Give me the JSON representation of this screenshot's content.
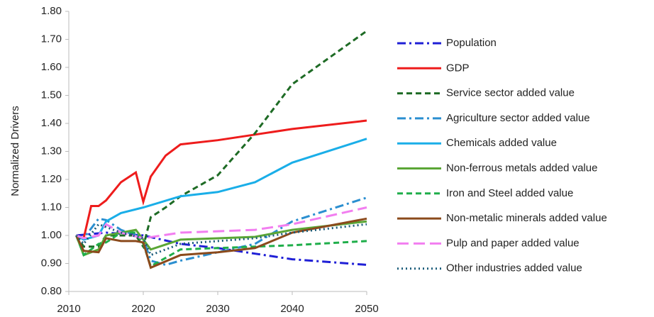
{
  "chart_data": {
    "type": "line",
    "ylabel": "Normalized Drivers",
    "xlim": [
      2010,
      2050
    ],
    "xticks": [
      2010,
      2020,
      2030,
      2040,
      2050
    ],
    "ylim": [
      0.8,
      1.8
    ],
    "yticks": [
      {
        "value": 0.8,
        "label": "0.80"
      },
      {
        "value": 0.9,
        "label": "0.90"
      },
      {
        "value": 1.0,
        "label": "1.00"
      },
      {
        "value": 1.1,
        "label": "1.10"
      },
      {
        "value": 1.2,
        "label": "1.20"
      },
      {
        "value": 1.3,
        "label": "1.30"
      },
      {
        "value": 1.4,
        "label": "1.40"
      },
      {
        "value": 1.5,
        "label": "1.50"
      },
      {
        "value": 1.6,
        "label": "1.60"
      },
      {
        "value": 1.7,
        "label": "1.70"
      },
      {
        "value": 1.8,
        "label": "1.80"
      }
    ],
    "legend": "right",
    "series": [
      {
        "name": "Population",
        "color": "#1f1fd6",
        "style": "dashdot",
        "x": [
          2011,
          2015,
          2020,
          2025,
          2030,
          2035,
          2040,
          2050
        ],
        "values": [
          1.0,
          1.01,
          1.0,
          0.97,
          0.955,
          0.935,
          0.915,
          0.895
        ]
      },
      {
        "name": "GDP",
        "color": "#ee1c1c",
        "style": "solid",
        "x": [
          2011,
          2012,
          2013,
          2014,
          2015,
          2017,
          2019,
          2020,
          2021,
          2023,
          2025,
          2030,
          2035,
          2040,
          2050
        ],
        "values": [
          1.0,
          0.99,
          1.105,
          1.105,
          1.125,
          1.19,
          1.225,
          1.12,
          1.21,
          1.285,
          1.325,
          1.34,
          1.36,
          1.38,
          1.41
        ]
      },
      {
        "name": "Service sector added value",
        "color": "#1e6b25",
        "style": "dash",
        "x": [
          2011,
          2012,
          2014,
          2015,
          2017,
          2019,
          2020,
          2021,
          2023,
          2025,
          2030,
          2035,
          2040,
          2050
        ],
        "values": [
          1.0,
          0.96,
          0.96,
          1.0,
          1.0,
          1.0,
          0.96,
          1.065,
          1.1,
          1.14,
          1.215,
          1.365,
          1.54,
          1.73
        ]
      },
      {
        "name": "Agriculture sector added value",
        "color": "#2b8fd0",
        "style": "dashdot",
        "x": [
          2011,
          2012,
          2014,
          2015,
          2017,
          2019,
          2020,
          2021,
          2023,
          2025,
          2030,
          2035,
          2040,
          2050
        ],
        "values": [
          1.0,
          0.99,
          1.06,
          1.055,
          1.02,
          1.0,
          0.99,
          0.91,
          0.895,
          0.91,
          0.94,
          0.97,
          1.05,
          1.135
        ]
      },
      {
        "name": "Chemicals added value",
        "color": "#1aaee8",
        "style": "solid",
        "x": [
          2011,
          2012,
          2014,
          2015,
          2017,
          2020,
          2025,
          2030,
          2035,
          2040,
          2050
        ],
        "values": [
          1.0,
          0.985,
          1.0,
          1.05,
          1.08,
          1.1,
          1.14,
          1.155,
          1.19,
          1.26,
          1.345
        ]
      },
      {
        "name": "Non-ferrous metals added value",
        "color": "#5aa636",
        "style": "solid",
        "x": [
          2011,
          2012,
          2014,
          2015,
          2017,
          2019,
          2020,
          2021,
          2025,
          2030,
          2035,
          2040,
          2050
        ],
        "values": [
          1.0,
          0.93,
          0.95,
          1.0,
          1.01,
          1.02,
          0.985,
          0.95,
          0.985,
          0.99,
          0.995,
          1.02,
          1.05
        ]
      },
      {
        "name": "Iron and Steel added value",
        "color": "#1fae4a",
        "style": "dash",
        "x": [
          2011,
          2012,
          2014,
          2015,
          2017,
          2019,
          2020,
          2021,
          2025,
          2030,
          2035,
          2040,
          2050
        ],
        "values": [
          1.0,
          0.93,
          0.97,
          0.975,
          1.01,
          1.01,
          0.97,
          0.89,
          0.95,
          0.955,
          0.96,
          0.965,
          0.98
        ]
      },
      {
        "name": "Non-metalic minerals added value",
        "color": "#8b4a1c",
        "style": "solid",
        "x": [
          2011,
          2012,
          2014,
          2015,
          2017,
          2019,
          2020,
          2021,
          2025,
          2030,
          2035,
          2040,
          2050
        ],
        "values": [
          1.0,
          0.945,
          0.94,
          0.99,
          0.98,
          0.98,
          0.975,
          0.885,
          0.93,
          0.94,
          0.955,
          1.01,
          1.06
        ]
      },
      {
        "name": "Pulp and paper added value",
        "color": "#f27ef0",
        "style": "longdash",
        "x": [
          2011,
          2012,
          2014,
          2015,
          2017,
          2020,
          2025,
          2030,
          2035,
          2040,
          2050
        ],
        "values": [
          1.0,
          0.99,
          1.0,
          1.04,
          1.01,
          0.99,
          1.01,
          1.015,
          1.02,
          1.04,
          1.1
        ]
      },
      {
        "name": "Other industries added value",
        "color": "#1a5c7a",
        "style": "dot",
        "x": [
          2011,
          2012,
          2014,
          2015,
          2017,
          2020,
          2021,
          2025,
          2030,
          2035,
          2040,
          2050
        ],
        "values": [
          1.0,
          0.97,
          1.04,
          1.03,
          1.01,
          0.99,
          0.93,
          0.97,
          0.98,
          0.99,
          1.01,
          1.04
        ]
      }
    ]
  }
}
